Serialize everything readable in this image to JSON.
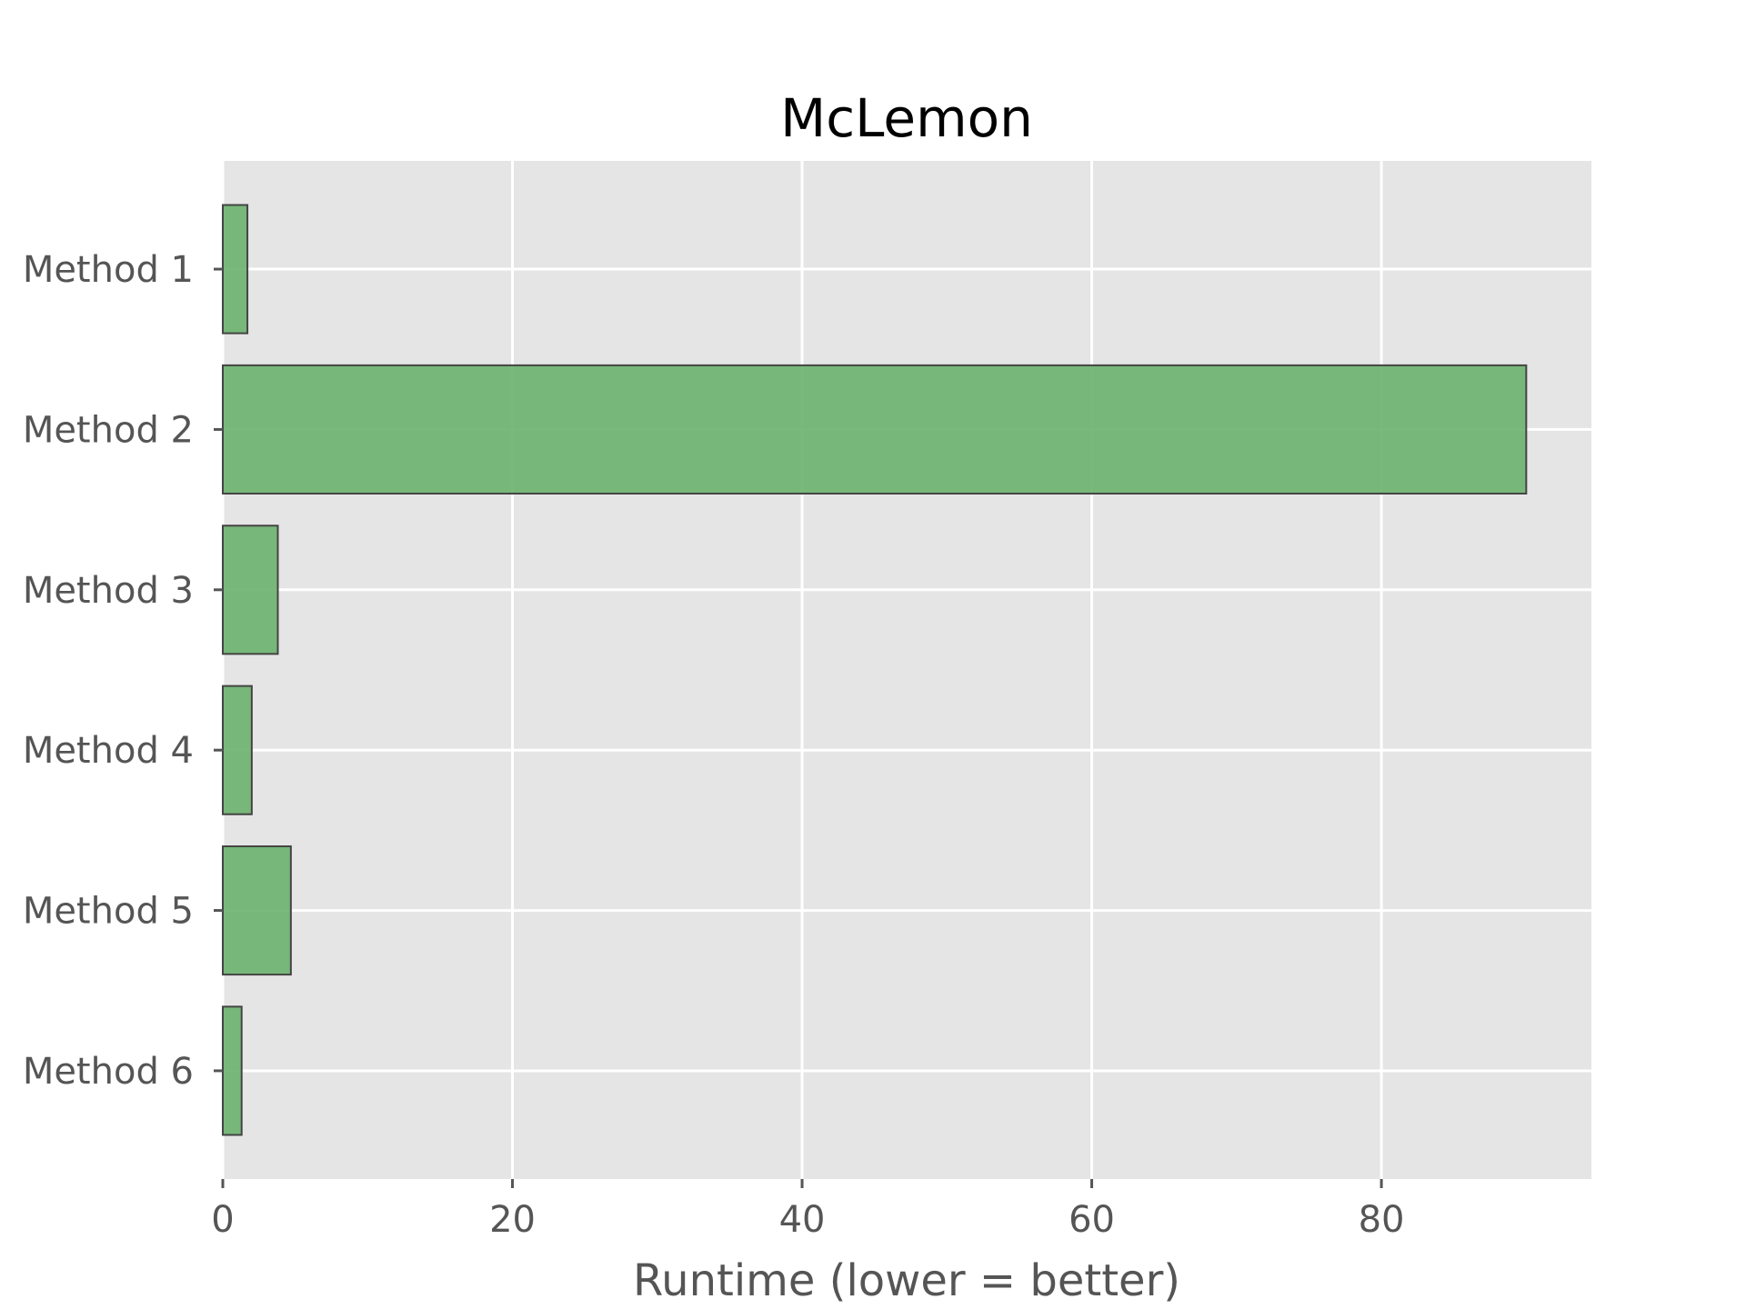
{
  "chart_data": {
    "type": "bar",
    "orientation": "horizontal",
    "title": "McLemon",
    "xlabel": "Runtime (lower = better)",
    "ylabel": "",
    "categories": [
      "Method 1",
      "Method 2",
      "Method 3",
      "Method 4",
      "Method 5",
      "Method 6"
    ],
    "values": [
      1.7,
      90.0,
      3.8,
      2.0,
      4.7,
      1.3
    ],
    "xlim": [
      0,
      94.5
    ],
    "xticks": [
      0,
      20,
      40,
      60,
      80
    ],
    "xtick_labels": [
      "0",
      "20",
      "40",
      "60",
      "80"
    ],
    "grid": true,
    "legend": "none",
    "colors": {
      "bar_fill": "#6ab16e",
      "bar_edge": "#444444",
      "plot_background": "#e5e5e5",
      "grid": "#ffffff",
      "tick_text": "#555555",
      "title_text": "#000000"
    }
  }
}
